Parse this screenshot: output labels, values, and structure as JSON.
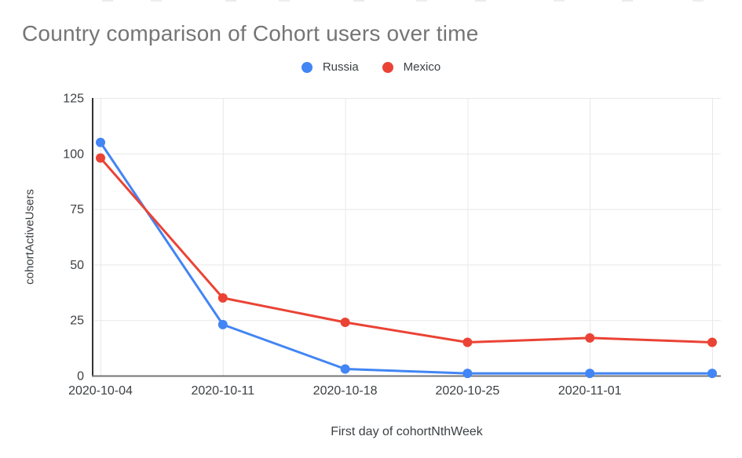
{
  "chart_data": {
    "type": "line",
    "title": "Country comparison of Cohort users over time",
    "xlabel": "First day of cohortNthWeek",
    "ylabel": "cohortActiveUsers",
    "categories": [
      "2020-10-04",
      "2020-10-11",
      "2020-10-18",
      "2020-10-25",
      "2020-11-01",
      ""
    ],
    "x_tick_labels": [
      "2020-10-04",
      "2020-10-11",
      "2020-10-18",
      "2020-10-25",
      "2020-11-01"
    ],
    "y_ticks": [
      0,
      25,
      50,
      75,
      100,
      125
    ],
    "ylim": [
      0,
      125
    ],
    "grid": true,
    "legend_position": "top",
    "series": [
      {
        "name": "Russia",
        "color": "#4285F4",
        "values": [
          105,
          23,
          3,
          1,
          1,
          1
        ]
      },
      {
        "name": "Mexico",
        "color": "#EA4335",
        "values": [
          98,
          35,
          24,
          15,
          17,
          15
        ]
      }
    ],
    "colors": {
      "title_text": "#757575",
      "axis_text": "#3c4043",
      "gridline": "#e8e8e8",
      "y_axis_line": "#333333",
      "x_axis_line": "#757575"
    }
  }
}
